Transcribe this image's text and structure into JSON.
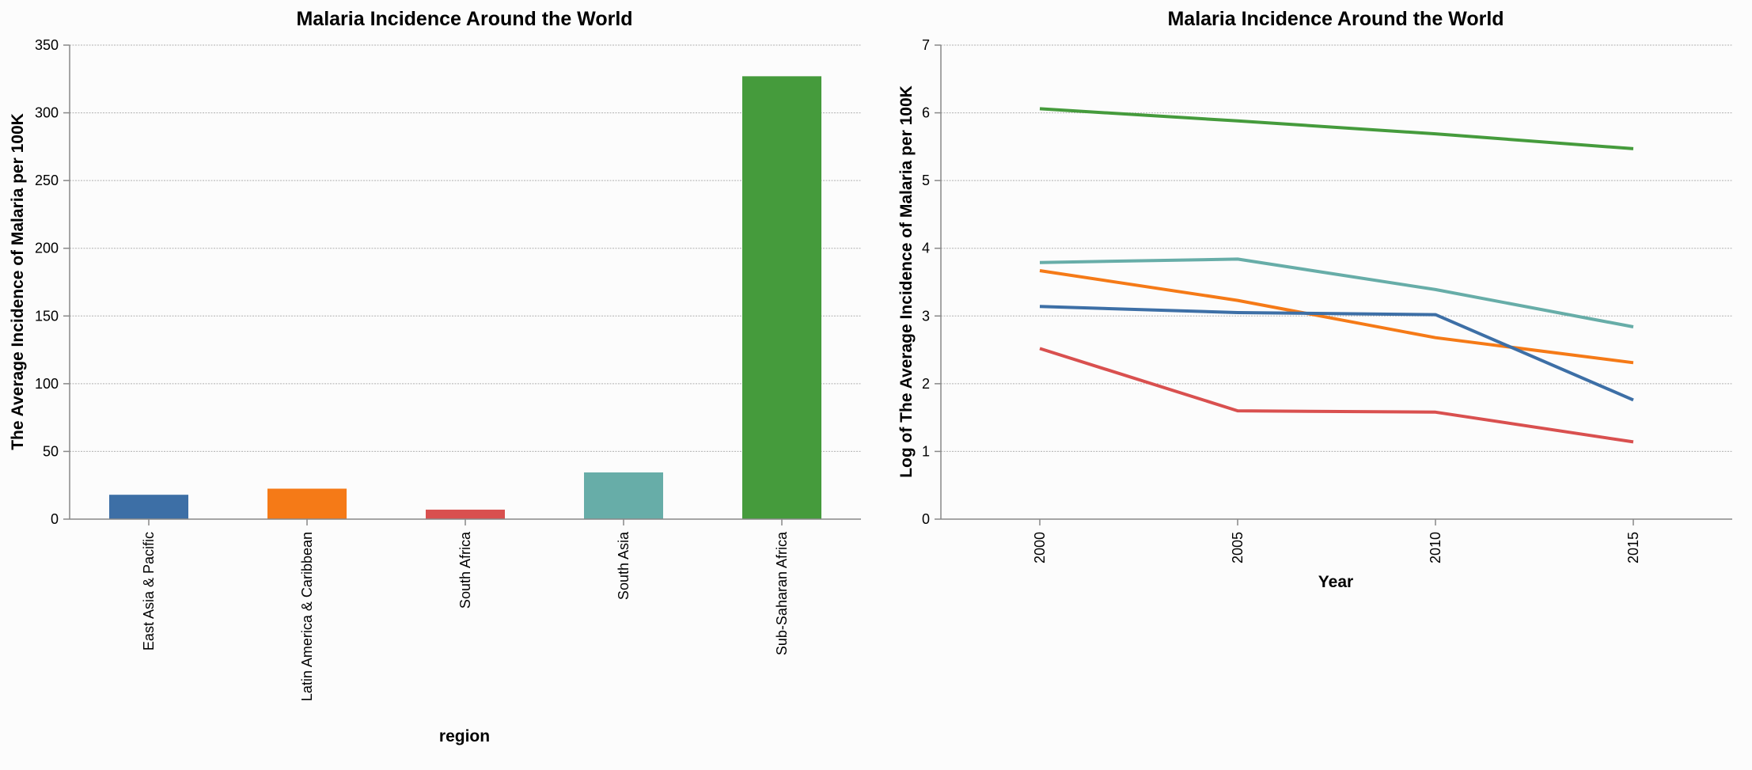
{
  "chart_data": [
    {
      "type": "bar",
      "title": "Malaria Incidence Around the World",
      "xlabel": "region",
      "ylabel": "The Average Incidence of Malaria per 100K",
      "ylim": [
        0,
        350
      ],
      "yticks": [
        0,
        50,
        100,
        150,
        200,
        250,
        300,
        350
      ],
      "grid": true,
      "categories": [
        "East Asia & Pacific",
        "Latin America & Caribbean",
        "South Africa",
        "South Asia",
        "Sub-Saharan Africa"
      ],
      "values": [
        18,
        22.5,
        7,
        34.5,
        327
      ],
      "colors": [
        "#3d6fa6",
        "#f57a17",
        "#d9504f",
        "#67ada8",
        "#459b3c"
      ]
    },
    {
      "type": "line",
      "title": "Malaria Incidence Around the World",
      "xlabel": "Year",
      "ylabel": "Log of The Average Incidence of Malaria per 100K",
      "ylim": [
        0,
        7
      ],
      "yticks": [
        0,
        1,
        2,
        3,
        4,
        5,
        6,
        7
      ],
      "xlim": [
        1997.5,
        2017.5
      ],
      "x": [
        2000,
        2005,
        2010,
        2015
      ],
      "grid": true,
      "series": [
        {
          "color": "#459b3c",
          "values": [
            6.06,
            5.88,
            5.69,
            5.47
          ]
        },
        {
          "color": "#67ada8",
          "values": [
            3.79,
            3.84,
            3.39,
            2.84
          ]
        },
        {
          "color": "#f57a17",
          "values": [
            3.67,
            3.23,
            2.68,
            2.31
          ]
        },
        {
          "color": "#3d6fa6",
          "values": [
            3.14,
            3.05,
            3.02,
            1.76
          ]
        },
        {
          "color": "#d9504f",
          "values": [
            2.52,
            1.6,
            1.58,
            1.14
          ]
        }
      ]
    }
  ]
}
